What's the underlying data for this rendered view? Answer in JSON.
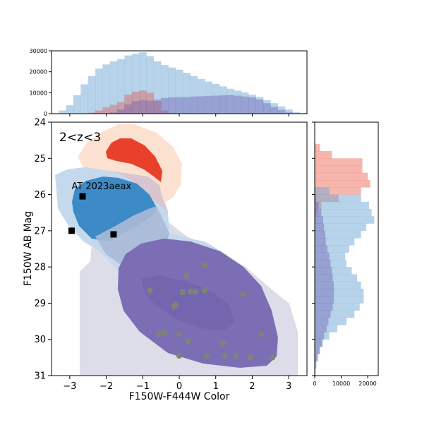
{
  "chart_data": {
    "type": "scatter",
    "main": {
      "xlabel": "F150W-F444W Color",
      "ylabel": "F150W AB Mag",
      "xlim": [
        -3.5,
        3.5
      ],
      "ylim": [
        31,
        24
      ],
      "xticks": [
        "−3",
        "−2",
        "−1",
        "0",
        "1",
        "2",
        "3"
      ],
      "xtick_values": [
        -3,
        -2,
        -1,
        0,
        1,
        2,
        3
      ],
      "yticks": [
        "24",
        "25",
        "26",
        "27",
        "28",
        "29",
        "30",
        "31"
      ],
      "ytick_values": [
        24,
        25,
        26,
        27,
        28,
        29,
        30,
        31
      ],
      "label_text": "2<z<3",
      "annotation": {
        "text": "AT 2023aeax",
        "x": -2.95,
        "y": 25.85
      },
      "squares": [
        {
          "x": -2.65,
          "y": 26.05
        },
        {
          "x": -2.95,
          "y": 27.0
        },
        {
          "x": -1.8,
          "y": 27.1
        }
      ],
      "points": [
        {
          "x": -0.8,
          "y": 28.65
        },
        {
          "x": 0.2,
          "y": 28.25
        },
        {
          "x": 0.7,
          "y": 27.95
        },
        {
          "x": 0.1,
          "y": 28.7
        },
        {
          "x": 0.3,
          "y": 28.68
        },
        {
          "x": 0.45,
          "y": 28.68
        },
        {
          "x": 0.7,
          "y": 28.65
        },
        {
          "x": 1.75,
          "y": 28.75
        },
        {
          "x": -0.1,
          "y": 29.05
        },
        {
          "x": -0.15,
          "y": 29.1
        },
        {
          "x": -0.55,
          "y": 29.85
        },
        {
          "x": -0.4,
          "y": 29.82
        },
        {
          "x": 0.0,
          "y": 29.85
        },
        {
          "x": 0.25,
          "y": 30.05
        },
        {
          "x": 0.0,
          "y": 30.45
        },
        {
          "x": 0.75,
          "y": 30.45
        },
        {
          "x": 1.25,
          "y": 30.45
        },
        {
          "x": 1.55,
          "y": 30.45
        },
        {
          "x": 1.95,
          "y": 30.5
        },
        {
          "x": 1.2,
          "y": 30.1
        },
        {
          "x": 2.25,
          "y": 29.85
        },
        {
          "x": 2.55,
          "y": 30.5
        }
      ],
      "colors": {
        "light_blue": "#b5d2e8",
        "mid_blue": "#3c8bc7",
        "salmon_light": "#fde0cf",
        "red": "#e8402b",
        "lavender": "#dddde9",
        "purple": "#7b6eb4",
        "gray_point": "#7e8279"
      }
    },
    "top_hist": {
      "ylim": [
        0,
        30000
      ],
      "yticks": [
        "0",
        "10000",
        "20000",
        "30000"
      ],
      "ytick_values": [
        0,
        10000,
        20000,
        30000
      ],
      "bin_edges": [
        -3.5,
        -3.3,
        -3.1,
        -2.9,
        -2.7,
        -2.5,
        -2.3,
        -2.1,
        -1.9,
        -1.7,
        -1.5,
        -1.3,
        -1.1,
        -0.9,
        -0.7,
        -0.5,
        -0.3,
        -0.1,
        0.1,
        0.3,
        0.5,
        0.7,
        0.9,
        1.1,
        1.3,
        1.5,
        1.7,
        1.9,
        2.1,
        2.3,
        2.5,
        2.7,
        2.9,
        3.1,
        3.3,
        3.5
      ],
      "blue": [
        200,
        1500,
        4000,
        8800,
        14000,
        18000,
        21500,
        23500,
        25000,
        26000,
        27800,
        28600,
        29300,
        27500,
        25000,
        23200,
        22000,
        21000,
        19500,
        18000,
        16500,
        15300,
        14200,
        13000,
        11900,
        11000,
        10100,
        9000,
        8000,
        6400,
        5000,
        3500,
        2000,
        800,
        300
      ],
      "red": [
        0,
        0,
        0,
        0,
        0,
        500,
        1500,
        3000,
        4200,
        5500,
        9000,
        10500,
        11000,
        10000,
        6000,
        1500,
        300,
        0,
        0,
        0,
        0,
        0,
        0,
        0,
        0,
        0,
        0,
        0,
        0,
        0,
        0,
        0,
        0,
        0,
        0
      ],
      "purple": [
        0,
        0,
        0,
        0,
        0,
        0,
        0,
        200,
        600,
        2000,
        4500,
        6000,
        6500,
        6200,
        6700,
        7500,
        7800,
        7900,
        8000,
        8200,
        8300,
        8500,
        8600,
        8800,
        8900,
        8600,
        8200,
        7800,
        6800,
        5000,
        3200,
        1800,
        600,
        200,
        0
      ]
    },
    "right_hist": {
      "xlim": [
        0,
        24000
      ],
      "xticks": [
        "0",
        "10000",
        "20000"
      ],
      "xtick_values": [
        0,
        10000,
        20000
      ],
      "bin_edges": [
        24.6,
        24.8,
        25.0,
        25.2,
        25.4,
        25.6,
        25.8,
        26.0,
        26.2,
        26.4,
        26.6,
        26.8,
        27.0,
        27.2,
        27.4,
        27.6,
        27.8,
        28.0,
        28.2,
        28.4,
        28.6,
        28.8,
        29.0,
        29.2,
        29.4,
        29.6,
        29.8,
        30.0,
        30.2,
        30.4,
        30.6,
        30.8,
        31.0
      ],
      "red": [
        2000,
        6500,
        18000,
        18000,
        20000,
        21000,
        17500,
        9000,
        2500,
        1000,
        300,
        0,
        0,
        0,
        0,
        0,
        0,
        0,
        0,
        0,
        0,
        0,
        0,
        0,
        0,
        0,
        0,
        0,
        0,
        0,
        0,
        0
      ],
      "blue": [
        0,
        0,
        0,
        0,
        0,
        0,
        5500,
        17500,
        20500,
        21500,
        22500,
        19500,
        17500,
        15000,
        13000,
        11500,
        12000,
        14000,
        16000,
        17500,
        18500,
        18500,
        17000,
        15000,
        12000,
        8500,
        5500,
        3000,
        1800,
        900,
        400,
        200
      ],
      "purple": [
        0,
        0,
        0,
        0,
        0,
        0,
        0,
        500,
        1500,
        2500,
        3200,
        3500,
        4000,
        4200,
        4800,
        5500,
        6000,
        6500,
        6800,
        7200,
        7300,
        7200,
        6800,
        6000,
        5200,
        4500,
        3500,
        2800,
        2000,
        1200,
        600,
        300
      ]
    }
  }
}
